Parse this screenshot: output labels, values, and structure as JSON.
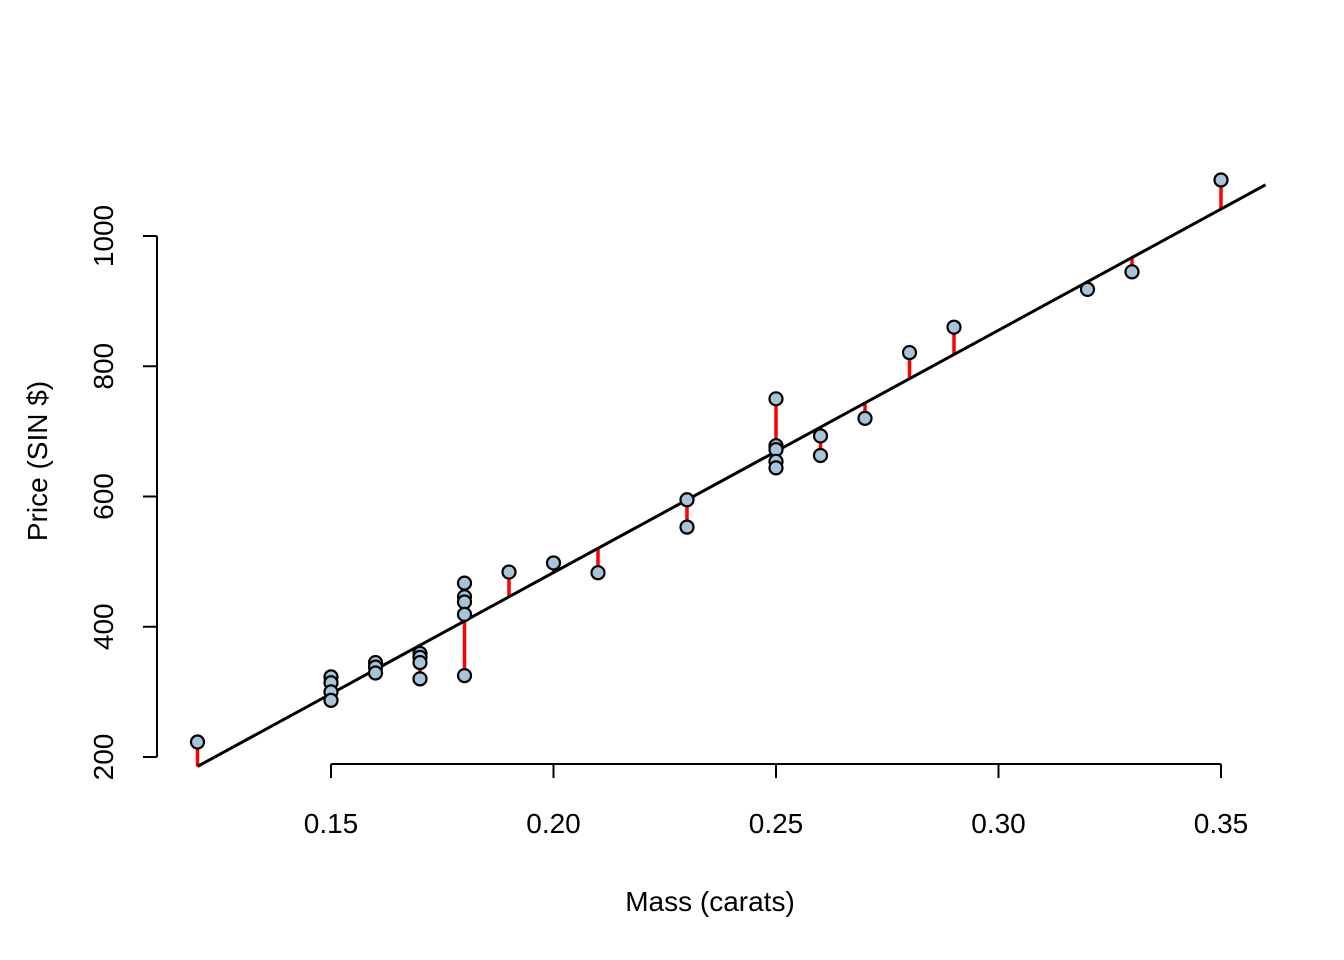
{
  "chart_data": {
    "type": "scatter",
    "title": "",
    "xlabel": "Mass (carats)",
    "ylabel": "Price (SIN $)",
    "xlim": [
      0.12,
      0.35
    ],
    "ylim": [
      200,
      1100
    ],
    "x_ticks": [
      0.15,
      0.2,
      0.25,
      0.3,
      0.35
    ],
    "x_tick_labels": [
      "0.15",
      "0.20",
      "0.25",
      "0.30",
      "0.35"
    ],
    "y_ticks": [
      200,
      400,
      600,
      800,
      1000
    ],
    "y_tick_labels": [
      "200",
      "400",
      "600",
      "800",
      "1000"
    ],
    "grid": false,
    "points": [
      {
        "x": 0.12,
        "y": 223
      },
      {
        "x": 0.15,
        "y": 323
      },
      {
        "x": 0.15,
        "y": 314
      },
      {
        "x": 0.15,
        "y": 300
      },
      {
        "x": 0.15,
        "y": 287
      },
      {
        "x": 0.16,
        "y": 345
      },
      {
        "x": 0.16,
        "y": 338
      },
      {
        "x": 0.16,
        "y": 329
      },
      {
        "x": 0.17,
        "y": 359
      },
      {
        "x": 0.17,
        "y": 353
      },
      {
        "x": 0.17,
        "y": 345
      },
      {
        "x": 0.17,
        "y": 320
      },
      {
        "x": 0.18,
        "y": 467
      },
      {
        "x": 0.18,
        "y": 446
      },
      {
        "x": 0.18,
        "y": 438
      },
      {
        "x": 0.18,
        "y": 419
      },
      {
        "x": 0.18,
        "y": 325
      },
      {
        "x": 0.19,
        "y": 484
      },
      {
        "x": 0.2,
        "y": 498
      },
      {
        "x": 0.21,
        "y": 483
      },
      {
        "x": 0.23,
        "y": 595
      },
      {
        "x": 0.23,
        "y": 553
      },
      {
        "x": 0.25,
        "y": 750
      },
      {
        "x": 0.25,
        "y": 678
      },
      {
        "x": 0.25,
        "y": 672
      },
      {
        "x": 0.25,
        "y": 654
      },
      {
        "x": 0.25,
        "y": 644
      },
      {
        "x": 0.26,
        "y": 693
      },
      {
        "x": 0.26,
        "y": 663
      },
      {
        "x": 0.27,
        "y": 720
      },
      {
        "x": 0.28,
        "y": 821
      },
      {
        "x": 0.29,
        "y": 860
      },
      {
        "x": 0.32,
        "y": 918
      },
      {
        "x": 0.33,
        "y": 945
      },
      {
        "x": 0.35,
        "y": 1086
      }
    ],
    "fit_line": {
      "intercept": -261,
      "slope": 3721
    },
    "colors": {
      "point_fill": "#a8c4d8",
      "point_stroke": "#000000",
      "residual": "#ff0000",
      "fit_line": "#000000"
    }
  }
}
